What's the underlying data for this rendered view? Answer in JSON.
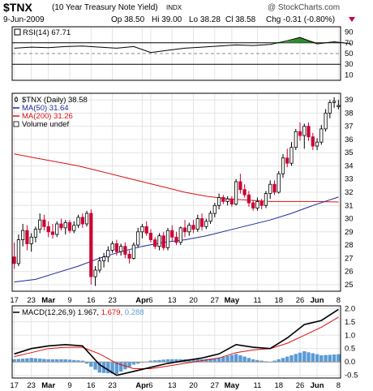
{
  "header": {
    "symbol": "$TNX",
    "description": "(10 Year Treasury Note Yield)",
    "exchange": "INDX",
    "copyright": "@ StockCharts.com",
    "date": "9-Jun-2009",
    "open": "Op 38.50",
    "high": "Hi 39.00",
    "low": "Lo 38.28",
    "close": "Cl 38.58",
    "change": "Chg -0.31 (-0.80%)",
    "change_arrow_color": "#cc0033"
  },
  "colors": {
    "up": "#000000",
    "down": "#cc0033",
    "ma50": "#1a2a9a",
    "ma200": "#dd1111",
    "macd_line": "#000000",
    "macd_signal": "#dd1111",
    "histogram": "#5b9bd5",
    "rsi_line": "#000000",
    "rsi_fill": "#2e8b2e"
  },
  "chart_data": [
    {
      "type": "line",
      "panel": "rsi",
      "legend": "RSI(14) 67.71",
      "ylim": [
        0,
        100
      ],
      "yticks": [
        10,
        30,
        50,
        70,
        90
      ],
      "reference_lines": [
        30,
        50,
        70
      ],
      "x": [
        0,
        4,
        8,
        12,
        16,
        20,
        24,
        28,
        32,
        36,
        40,
        44,
        48,
        52,
        56,
        60,
        63,
        67,
        71,
        75,
        79
      ],
      "values": [
        60,
        62,
        61,
        63,
        64,
        62,
        60,
        63,
        52,
        56,
        60,
        62,
        64,
        66,
        65,
        67,
        72,
        80,
        68,
        72,
        68
      ]
    },
    {
      "type": "candlestick",
      "panel": "price",
      "legend": [
        "$TNX (Daily) 38.58",
        "MA(50) 31.64",
        "MA(200) 31.26",
        "Volume undef"
      ],
      "ylim": [
        24.5,
        39.5
      ],
      "yticks": [
        25,
        26,
        27,
        28,
        29,
        30,
        31,
        32,
        33,
        34,
        35,
        36,
        37,
        38,
        39
      ],
      "x_labels": [
        {
          "label": "17",
          "x": 0
        },
        {
          "label": "23",
          "x": 4
        },
        {
          "label": "Mar",
          "x": 8
        },
        {
          "label": "9",
          "x": 13
        },
        {
          "label": "16",
          "x": 18
        },
        {
          "label": "23",
          "x": 23
        },
        {
          "label": "Apr",
          "x": 30
        },
        {
          "label": "6",
          "x": 32
        },
        {
          "label": "13",
          "x": 37
        },
        {
          "label": "20",
          "x": 42
        },
        {
          "label": "27",
          "x": 47
        },
        {
          "label": "May",
          "x": 51
        },
        {
          "label": "11",
          "x": 57
        },
        {
          "label": "18",
          "x": 62
        },
        {
          "label": "26",
          "x": 67
        },
        {
          "label": "Jun",
          "x": 71
        },
        {
          "label": "8",
          "x": 76
        }
      ],
      "candles": [
        {
          "o": 27.1,
          "h": 28.2,
          "l": 26.2,
          "c": 26.6
        },
        {
          "o": 26.6,
          "h": 28.8,
          "l": 26.4,
          "c": 28.4
        },
        {
          "o": 28.4,
          "h": 29.6,
          "l": 27.9,
          "c": 29.1
        },
        {
          "o": 29.1,
          "h": 29.5,
          "l": 27.6,
          "c": 28.1
        },
        {
          "o": 28.1,
          "h": 28.9,
          "l": 27.5,
          "c": 28.6
        },
        {
          "o": 28.6,
          "h": 29.4,
          "l": 28.2,
          "c": 29.2
        },
        {
          "o": 29.2,
          "h": 30.4,
          "l": 28.9,
          "c": 29.9
        },
        {
          "o": 29.9,
          "h": 30.3,
          "l": 29.1,
          "c": 29.4
        },
        {
          "o": 29.4,
          "h": 29.8,
          "l": 28.6,
          "c": 29.0
        },
        {
          "o": 29.0,
          "h": 29.6,
          "l": 28.5,
          "c": 28.8
        },
        {
          "o": 28.8,
          "h": 29.8,
          "l": 28.6,
          "c": 29.6
        },
        {
          "o": 29.6,
          "h": 30.0,
          "l": 29.1,
          "c": 29.3
        },
        {
          "o": 29.3,
          "h": 29.9,
          "l": 28.8,
          "c": 29.7
        },
        {
          "o": 29.7,
          "h": 29.9,
          "l": 28.9,
          "c": 29.1
        },
        {
          "o": 29.1,
          "h": 29.8,
          "l": 28.9,
          "c": 29.5
        },
        {
          "o": 29.5,
          "h": 30.3,
          "l": 29.3,
          "c": 30.1
        },
        {
          "o": 30.1,
          "h": 30.4,
          "l": 29.3,
          "c": 29.6
        },
        {
          "o": 29.6,
          "h": 30.6,
          "l": 29.4,
          "c": 30.4
        },
        {
          "o": 30.4,
          "h": 30.7,
          "l": 25.0,
          "c": 25.6
        },
        {
          "o": 25.6,
          "h": 26.4,
          "l": 24.9,
          "c": 26.1
        },
        {
          "o": 26.1,
          "h": 27.1,
          "l": 25.9,
          "c": 26.8
        },
        {
          "o": 26.8,
          "h": 27.4,
          "l": 26.3,
          "c": 27.1
        },
        {
          "o": 27.1,
          "h": 27.9,
          "l": 26.7,
          "c": 27.6
        },
        {
          "o": 27.6,
          "h": 28.3,
          "l": 27.4,
          "c": 28.1
        },
        {
          "o": 28.1,
          "h": 28.4,
          "l": 27.2,
          "c": 27.5
        },
        {
          "o": 27.5,
          "h": 28.1,
          "l": 27.2,
          "c": 27.9
        },
        {
          "o": 27.9,
          "h": 28.2,
          "l": 27.0,
          "c": 27.3
        },
        {
          "o": 27.3,
          "h": 27.6,
          "l": 26.6,
          "c": 27.0
        },
        {
          "o": 27.0,
          "h": 28.2,
          "l": 26.9,
          "c": 28.0
        },
        {
          "o": 28.0,
          "h": 29.3,
          "l": 27.8,
          "c": 29.0
        },
        {
          "o": 29.0,
          "h": 29.6,
          "l": 28.5,
          "c": 29.4
        },
        {
          "o": 29.4,
          "h": 29.8,
          "l": 28.7,
          "c": 28.9
        },
        {
          "o": 28.9,
          "h": 29.2,
          "l": 28.2,
          "c": 28.4
        },
        {
          "o": 28.4,
          "h": 28.6,
          "l": 27.7,
          "c": 27.9
        },
        {
          "o": 27.9,
          "h": 28.9,
          "l": 27.6,
          "c": 28.7
        },
        {
          "o": 28.7,
          "h": 29.0,
          "l": 27.6,
          "c": 27.8
        },
        {
          "o": 27.8,
          "h": 29.3,
          "l": 27.6,
          "c": 29.1
        },
        {
          "o": 29.1,
          "h": 29.5,
          "l": 28.3,
          "c": 28.6
        },
        {
          "o": 28.6,
          "h": 29.0,
          "l": 28.0,
          "c": 28.2
        },
        {
          "o": 28.2,
          "h": 29.4,
          "l": 28.0,
          "c": 29.3
        },
        {
          "o": 29.3,
          "h": 29.9,
          "l": 28.6,
          "c": 29.0
        },
        {
          "o": 29.0,
          "h": 29.7,
          "l": 28.7,
          "c": 29.5
        },
        {
          "o": 29.5,
          "h": 29.9,
          "l": 28.9,
          "c": 29.2
        },
        {
          "o": 29.2,
          "h": 30.3,
          "l": 29.0,
          "c": 30.0
        },
        {
          "o": 30.0,
          "h": 30.4,
          "l": 29.1,
          "c": 29.4
        },
        {
          "o": 29.4,
          "h": 30.0,
          "l": 29.2,
          "c": 29.8
        },
        {
          "o": 29.8,
          "h": 30.6,
          "l": 29.6,
          "c": 30.4
        },
        {
          "o": 30.4,
          "h": 31.2,
          "l": 30.1,
          "c": 31.0
        },
        {
          "o": 31.0,
          "h": 31.9,
          "l": 30.7,
          "c": 31.6
        },
        {
          "o": 31.6,
          "h": 31.8,
          "l": 31.1,
          "c": 31.3
        },
        {
          "o": 31.3,
          "h": 31.7,
          "l": 31.0,
          "c": 31.5
        },
        {
          "o": 31.5,
          "h": 31.7,
          "l": 30.9,
          "c": 31.1
        },
        {
          "o": 31.1,
          "h": 33.0,
          "l": 31.0,
          "c": 32.8
        },
        {
          "o": 32.8,
          "h": 33.4,
          "l": 31.9,
          "c": 32.2
        },
        {
          "o": 32.2,
          "h": 32.6,
          "l": 31.6,
          "c": 31.8
        },
        {
          "o": 31.8,
          "h": 32.1,
          "l": 30.9,
          "c": 31.2
        },
        {
          "o": 31.2,
          "h": 31.4,
          "l": 30.6,
          "c": 30.8
        },
        {
          "o": 30.8,
          "h": 31.6,
          "l": 30.6,
          "c": 31.3
        },
        {
          "o": 31.3,
          "h": 31.5,
          "l": 30.7,
          "c": 31.0
        },
        {
          "o": 31.0,
          "h": 32.1,
          "l": 30.8,
          "c": 31.9
        },
        {
          "o": 31.9,
          "h": 32.9,
          "l": 31.5,
          "c": 32.6
        },
        {
          "o": 32.6,
          "h": 32.9,
          "l": 31.8,
          "c": 32.0
        },
        {
          "o": 32.0,
          "h": 33.6,
          "l": 31.9,
          "c": 33.4
        },
        {
          "o": 33.4,
          "h": 34.9,
          "l": 33.1,
          "c": 34.6
        },
        {
          "o": 34.6,
          "h": 35.3,
          "l": 33.9,
          "c": 34.2
        },
        {
          "o": 34.2,
          "h": 35.8,
          "l": 34.0,
          "c": 35.4
        },
        {
          "o": 35.4,
          "h": 36.8,
          "l": 35.2,
          "c": 36.6
        },
        {
          "o": 36.6,
          "h": 37.3,
          "l": 35.9,
          "c": 36.3
        },
        {
          "o": 36.3,
          "h": 37.2,
          "l": 35.3,
          "c": 37.0
        },
        {
          "o": 37.0,
          "h": 37.3,
          "l": 35.9,
          "c": 36.2
        },
        {
          "o": 36.2,
          "h": 36.5,
          "l": 35.2,
          "c": 35.5
        },
        {
          "o": 35.5,
          "h": 36.1,
          "l": 35.2,
          "c": 35.8
        },
        {
          "o": 35.8,
          "h": 37.1,
          "l": 35.6,
          "c": 36.8
        },
        {
          "o": 36.8,
          "h": 38.3,
          "l": 36.6,
          "c": 38.0
        },
        {
          "o": 38.0,
          "h": 39.0,
          "l": 37.6,
          "c": 38.8
        },
        {
          "o": 38.8,
          "h": 39.2,
          "l": 38.4,
          "c": 38.9
        },
        {
          "o": 38.5,
          "h": 39.0,
          "l": 38.28,
          "c": 38.58
        }
      ],
      "ma50": {
        "x": [
          0,
          5,
          10,
          15,
          20,
          25,
          30,
          35,
          40,
          45,
          50,
          55,
          60,
          65,
          70,
          76
        ],
        "values": [
          25.2,
          25.4,
          25.9,
          26.4,
          27.0,
          27.5,
          27.9,
          28.2,
          28.4,
          28.7,
          29.1,
          29.5,
          29.9,
          30.4,
          31.0,
          31.64
        ]
      },
      "ma200": {
        "x": [
          0,
          5,
          10,
          15,
          20,
          25,
          30,
          35,
          40,
          45,
          50,
          55,
          60,
          65,
          70,
          76
        ],
        "values": [
          34.9,
          34.6,
          34.3,
          34.0,
          33.6,
          33.2,
          32.8,
          32.4,
          32.0,
          31.7,
          31.5,
          31.4,
          31.3,
          31.3,
          31.3,
          31.26
        ]
      }
    },
    {
      "type": "line",
      "panel": "macd",
      "legend": {
        "name": "MACD(12,26,9)",
        "macd": "1.967",
        "signal": "1.679",
        "histogram": "0.288"
      },
      "ylim": [
        -0.6,
        2.1
      ],
      "yticks": [
        -0.5,
        0.0,
        0.5,
        1.0,
        1.5,
        2.0
      ],
      "macd": {
        "x": [
          0,
          4,
          8,
          12,
          16,
          20,
          24,
          28,
          32,
          36,
          40,
          44,
          48,
          52,
          56,
          60,
          64,
          68,
          72,
          76
        ],
        "values": [
          0.3,
          0.5,
          0.6,
          0.65,
          0.6,
          -0.1,
          -0.5,
          -0.35,
          -0.2,
          -0.05,
          0.05,
          0.15,
          0.3,
          0.65,
          0.55,
          0.5,
          0.9,
          1.4,
          1.55,
          1.967
        ]
      },
      "signal": {
        "x": [
          0,
          4,
          8,
          12,
          16,
          20,
          24,
          28,
          32,
          36,
          40,
          44,
          48,
          52,
          56,
          60,
          64,
          68,
          72,
          76
        ],
        "values": [
          0.2,
          0.35,
          0.5,
          0.55,
          0.55,
          0.3,
          -0.05,
          -0.25,
          -0.25,
          -0.15,
          -0.05,
          0.05,
          0.15,
          0.35,
          0.45,
          0.5,
          0.7,
          1.0,
          1.3,
          1.679
        ]
      }
    }
  ]
}
